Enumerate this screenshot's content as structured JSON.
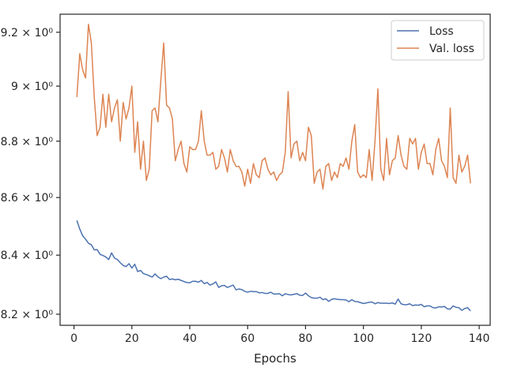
{
  "chart_data": {
    "type": "line",
    "title": "",
    "xlabel": "Epochs",
    "ylabel": "",
    "yscale": "log",
    "xlim": [
      -4.8,
      143.8
    ],
    "ylim": [
      8.163,
      9.268
    ],
    "grid": false,
    "legend_position": "top-right",
    "x_ticks": [
      {
        "value": 0,
        "label": "0"
      },
      {
        "value": 20,
        "label": "20"
      },
      {
        "value": 40,
        "label": "40"
      },
      {
        "value": 60,
        "label": "60"
      },
      {
        "value": 80,
        "label": "80"
      },
      {
        "value": 100,
        "label": "100"
      },
      {
        "value": 120,
        "label": "120"
      },
      {
        "value": 140,
        "label": "140"
      }
    ],
    "y_ticks": [
      {
        "value": 8.2,
        "label": "8.2 × 10⁰"
      },
      {
        "value": 8.4,
        "label": "8.4 × 10⁰"
      },
      {
        "value": 8.6,
        "label": "8.6 × 10⁰"
      },
      {
        "value": 8.8,
        "label": "8.8 × 10⁰"
      },
      {
        "value": 9.0,
        "label": "9 × 10⁰"
      },
      {
        "value": 9.2,
        "label": "9.2 × 10⁰"
      }
    ],
    "series": [
      {
        "name": "Loss",
        "color": "#4c72b0",
        "x_start": 1,
        "values": [
          8.52,
          8.49,
          8.467,
          8.455,
          8.441,
          8.436,
          8.418,
          8.419,
          8.403,
          8.399,
          8.394,
          8.385,
          8.408,
          8.39,
          8.385,
          8.374,
          8.365,
          8.361,
          8.371,
          8.356,
          8.369,
          8.344,
          8.348,
          8.337,
          8.334,
          8.33,
          8.325,
          8.336,
          8.326,
          8.32,
          8.325,
          8.328,
          8.317,
          8.319,
          8.316,
          8.318,
          8.314,
          8.31,
          8.307,
          8.306,
          8.311,
          8.311,
          8.308,
          8.314,
          8.303,
          8.307,
          8.298,
          8.302,
          8.309,
          8.29,
          8.296,
          8.297,
          8.29,
          8.294,
          8.298,
          8.282,
          8.285,
          8.283,
          8.277,
          8.274,
          8.277,
          8.276,
          8.276,
          8.272,
          8.273,
          8.27,
          8.27,
          8.274,
          8.268,
          8.268,
          8.269,
          8.262,
          8.269,
          8.266,
          8.265,
          8.267,
          8.269,
          8.264,
          8.263,
          8.271,
          8.262,
          8.256,
          8.254,
          8.254,
          8.257,
          8.249,
          8.252,
          8.243,
          8.25,
          8.252,
          8.25,
          8.249,
          8.249,
          8.248,
          8.242,
          8.249,
          8.243,
          8.242,
          8.239,
          8.236,
          8.238,
          8.24,
          8.241,
          8.235,
          8.239,
          8.237,
          8.237,
          8.237,
          8.236,
          8.238,
          8.234,
          8.251,
          8.235,
          8.232,
          8.232,
          8.235,
          8.229,
          8.231,
          8.23,
          8.233,
          8.225,
          8.228,
          8.228,
          8.222,
          8.221,
          8.225,
          8.224,
          8.226,
          8.218,
          8.217,
          8.228,
          8.223,
          8.222,
          8.213,
          8.219,
          8.222,
          8.211
        ]
      },
      {
        "name": "Val. loss",
        "color": "#dd8452",
        "x_start": 1,
        "values": [
          8.96,
          9.12,
          9.06,
          9.03,
          9.23,
          9.16,
          8.96,
          8.82,
          8.85,
          8.97,
          8.85,
          8.97,
          8.87,
          8.92,
          8.95,
          8.8,
          8.94,
          8.88,
          8.92,
          9.0,
          8.76,
          8.87,
          8.7,
          8.8,
          8.66,
          8.7,
          8.91,
          8.92,
          8.87,
          9.02,
          9.16,
          8.93,
          8.92,
          8.88,
          8.73,
          8.77,
          8.8,
          8.72,
          8.69,
          8.78,
          8.77,
          8.77,
          8.8,
          8.91,
          8.8,
          8.75,
          8.75,
          8.76,
          8.7,
          8.71,
          8.77,
          8.74,
          8.69,
          8.77,
          8.73,
          8.71,
          8.71,
          8.69,
          8.64,
          8.7,
          8.65,
          8.72,
          8.68,
          8.67,
          8.73,
          8.74,
          8.7,
          8.68,
          8.69,
          8.66,
          8.68,
          8.69,
          8.76,
          8.98,
          8.74,
          8.79,
          8.8,
          8.73,
          8.76,
          8.73,
          8.85,
          8.82,
          8.65,
          8.69,
          8.7,
          8.63,
          8.71,
          8.72,
          8.66,
          8.69,
          8.67,
          8.72,
          8.71,
          8.74,
          8.7,
          8.8,
          8.86,
          8.69,
          8.67,
          8.68,
          8.67,
          8.77,
          8.66,
          8.8,
          8.99,
          8.7,
          8.66,
          8.81,
          8.68,
          8.73,
          8.74,
          8.82,
          8.75,
          8.71,
          8.7,
          8.81,
          8.79,
          8.81,
          8.7,
          8.76,
          8.79,
          8.72,
          8.72,
          8.68,
          8.77,
          8.81,
          8.73,
          8.71,
          8.67,
          8.92,
          8.67,
          8.65,
          8.75,
          8.69,
          8.71,
          8.75,
          8.65
        ]
      }
    ]
  }
}
